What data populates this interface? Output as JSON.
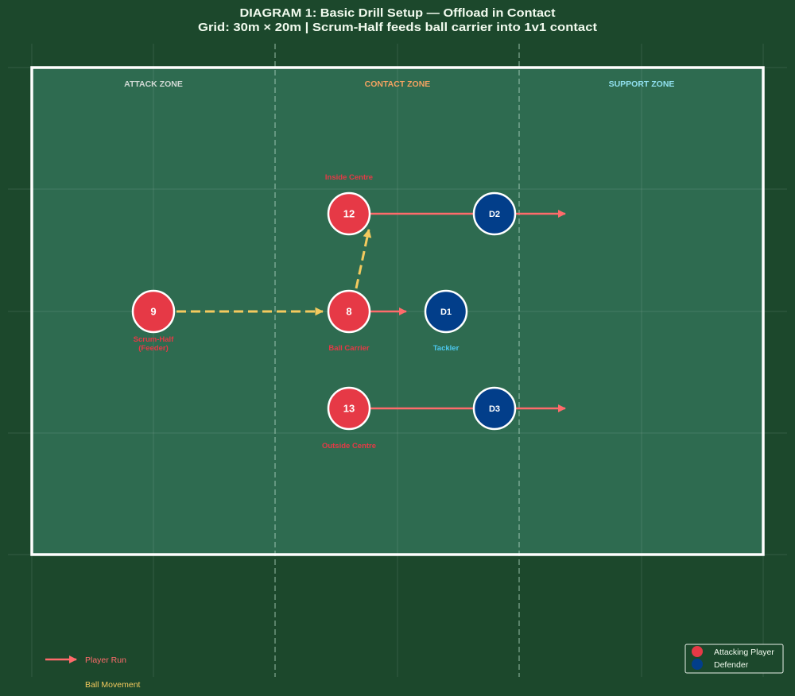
{
  "diagram": {
    "title_line1": "DIAGRAM 1: Basic Drill Setup — Offload in Contact",
    "title_line2": "Grid: 30m × 20m | Scrum-Half feeds ball carrier into 1v1 contact"
  },
  "zones": {
    "attack": "ATTACK ZONE",
    "contact": "CONTACT ZONE",
    "support": "SUPPORT ZONE"
  },
  "attackers": {
    "scrum_half": {
      "number": "9",
      "label_line1": "Scrum-Half",
      "label_line2": "(Feeder)"
    },
    "ball_carrier": {
      "number": "8",
      "label": "Ball Carrier"
    },
    "inside_centre": {
      "number": "12",
      "label": "Inside Centre"
    },
    "outside_centre": {
      "number": "13",
      "label": "Outside Centre"
    }
  },
  "defenders": {
    "d1": {
      "id": "D1",
      "label": "Tackler"
    },
    "d2": {
      "id": "D2"
    },
    "d3": {
      "id": "D3"
    }
  },
  "legend": {
    "player_run": "Player Run",
    "ball_movement": "Ball Movement",
    "attacking_player": "Attacking Player",
    "defender": "Defender"
  },
  "colors": {
    "background": "#1c482c",
    "field": "#2e6b50",
    "attacker": "#e63946",
    "defender": "#023e8a",
    "player_run": "#ff6b6b",
    "ball_movement": "#f4ca5e",
    "attack_zone_label": "#d0d9d4",
    "contact_zone_label": "#f4a261",
    "support_zone_label": "#90e0ef",
    "tackler_label": "#4cc9f0"
  }
}
